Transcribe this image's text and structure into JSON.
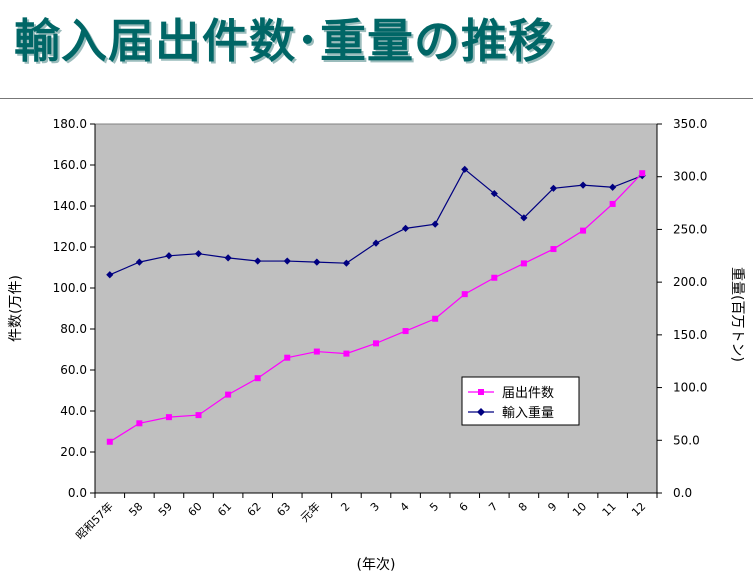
{
  "header": {
    "title": "輸入届出件数･重量の推移"
  },
  "colors": {
    "title": "#006666",
    "plot_bg": "#c0c0c0",
    "count_series": "#ff00ff",
    "weight_series": "#000080"
  },
  "chart_data": {
    "type": "line",
    "title": "",
    "xlabel": "(年次)",
    "ylabel": "件数(万件)",
    "y2label": "重量(百万トン)",
    "categories": [
      "昭和57年",
      "58",
      "59",
      "60",
      "61",
      "62",
      "63",
      "元年",
      "2",
      "3",
      "4",
      "5",
      "6",
      "7",
      "8",
      "9",
      "10",
      "11",
      "12"
    ],
    "ylim": [
      0,
      180
    ],
    "y_ticks": [
      "0.0",
      "20.0",
      "40.0",
      "60.0",
      "80.0",
      "100.0",
      "120.0",
      "140.0",
      "160.0",
      "180.0"
    ],
    "y2lim": [
      0,
      350
    ],
    "y2_ticks": [
      "0.0",
      "50.0",
      "100.0",
      "150.0",
      "200.0",
      "250.0",
      "300.0",
      "350.0"
    ],
    "grid": false,
    "legend_position": "inside-lower-right",
    "series": [
      {
        "name": "届出件数",
        "axis": "left",
        "marker": "square",
        "values": [
          25,
          34,
          37,
          38,
          48,
          56,
          66,
          69,
          68,
          73,
          79,
          85,
          97,
          105,
          112,
          119,
          128,
          141,
          156
        ]
      },
      {
        "name": "輸入重量",
        "axis": "right",
        "marker": "diamond",
        "values": [
          207,
          219,
          225,
          227,
          223,
          220,
          220,
          219,
          218,
          237,
          251,
          255,
          307,
          284,
          261,
          289,
          292,
          290,
          301
        ]
      }
    ]
  }
}
